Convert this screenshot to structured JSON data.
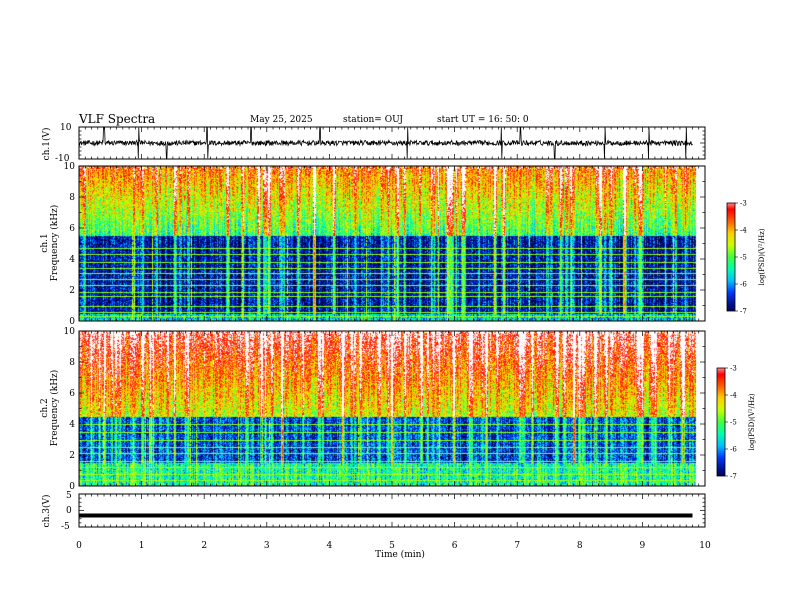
{
  "header": {
    "title": "VLF Spectra",
    "date": "May 25, 2025",
    "station": "station= OUJ",
    "start": "start  UT =   16: 50: 0"
  },
  "colors": {
    "trace": "#000000",
    "colormap": [
      "#000033",
      "#00108a",
      "#0038ff",
      "#00c0ff",
      "#00ffb0",
      "#40ff40",
      "#c8ff00",
      "#ffd000",
      "#ff6000",
      "#ff0000",
      "#ffffff"
    ]
  },
  "chart_data": [
    {
      "type": "line",
      "panel": "ch1-waveform",
      "ylabel": "ch.1(V)",
      "ylim": [
        -10,
        10
      ],
      "yticks": [
        "10",
        "-10"
      ],
      "xlim": [
        0,
        10
      ],
      "baseline": 0,
      "note_spikes_min": [
        0.4,
        0.95,
        1.4,
        2.05,
        2.75,
        3.85,
        5.25,
        6.75,
        7.05,
        7.6,
        8.4,
        9.1,
        9.7
      ]
    },
    {
      "type": "heatmap",
      "panel": "ch1-spectrogram",
      "ylabel": "ch.1\nFrequency (kHz)",
      "ylabel_line1": "ch.1",
      "ylabel_line2": "Frequency (kHz)",
      "ylim": [
        0,
        10
      ],
      "yticks": [
        "0",
        "2",
        "4",
        "6",
        "8",
        "10"
      ],
      "xlim": [
        0,
        9.85
      ],
      "colorbar": {
        "label": "log(PSD)(V²/Hz)",
        "range": [
          -7,
          -3
        ],
        "ticks": [
          "-3",
          "-4",
          "-5",
          "-6",
          "-7"
        ]
      },
      "quiet_band_khz": [
        0.5,
        5.5
      ],
      "line_freqs_khz": [
        0.3,
        0.6,
        1.0,
        1.6,
        1.9,
        2.3,
        2.7,
        3.1,
        3.4,
        3.8,
        4.3,
        4.7
      ]
    },
    {
      "type": "heatmap",
      "panel": "ch2-spectrogram",
      "ylabel": "ch.2\nFrequency (kHz)",
      "ylabel_line1": "ch.2",
      "ylabel_line2": "Frequency (kHz)",
      "ylim": [
        0,
        10
      ],
      "yticks": [
        "0",
        "2",
        "4",
        "6",
        "8",
        "10"
      ],
      "xlim": [
        0,
        9.85
      ],
      "colorbar": {
        "label": "log(PSD)(V²/Hz)",
        "range": [
          -7,
          -3
        ],
        "ticks": [
          "-3",
          "-4",
          "-5",
          "-6",
          "-7"
        ]
      },
      "quiet_band_khz": [
        1.5,
        4.5
      ],
      "line_freqs_khz": [
        0.4,
        0.8,
        1.2,
        1.6,
        2.1,
        2.5,
        3.0,
        3.5,
        4.0,
        4.6
      ]
    },
    {
      "type": "line",
      "panel": "ch3-waveform",
      "ylabel": "ch.3(V)",
      "ylim": [
        -5,
        5
      ],
      "yticks": [
        "5",
        "0",
        "-5"
      ],
      "xlim": [
        0,
        10
      ],
      "baseline": -1.5
    }
  ],
  "xaxis": {
    "label": "Time  (min)",
    "ticks": [
      "0",
      "1",
      "2",
      "3",
      "4",
      "5",
      "6",
      "7",
      "8",
      "9",
      "10"
    ],
    "range": [
      0,
      10
    ]
  }
}
